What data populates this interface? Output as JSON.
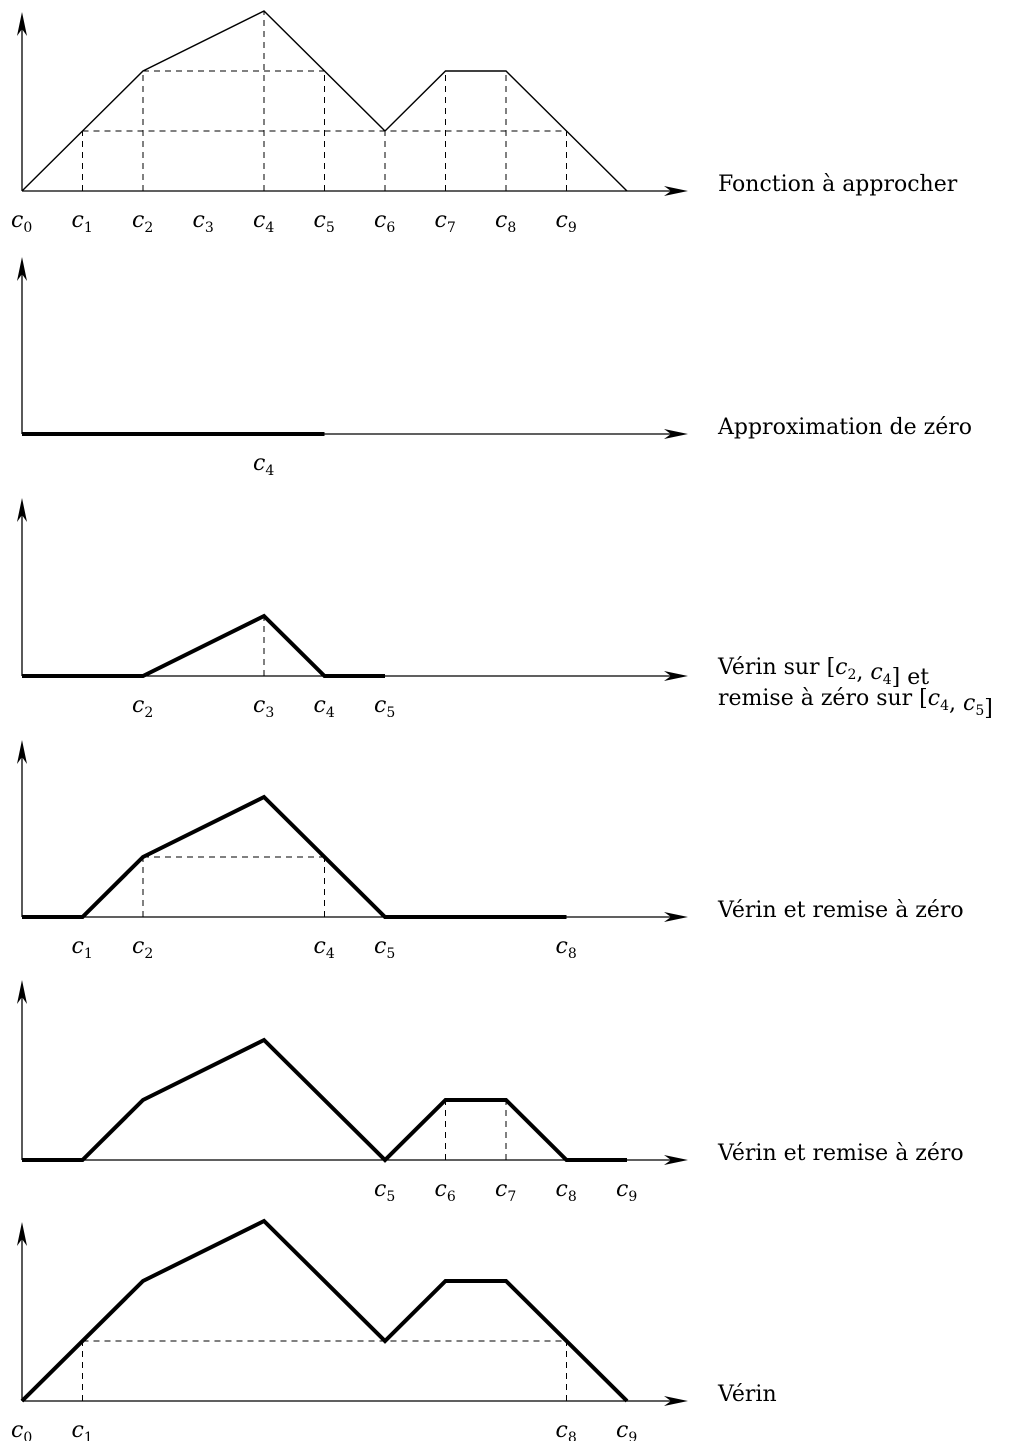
{
  "panels": [
    {
      "id": "target",
      "caption_lines": [
        [
          {
            "t": "Fonction à approcher"
          }
        ]
      ],
      "tick_labels": [
        {
          "k": 0,
          "text": "0"
        },
        {
          "k": 1,
          "text": "1"
        },
        {
          "k": 2,
          "text": "2"
        },
        {
          "k": 3,
          "text": "3"
        },
        {
          "k": 4,
          "text": "4"
        },
        {
          "k": 5,
          "text": "5"
        },
        {
          "k": 6,
          "text": "6"
        },
        {
          "k": 7,
          "text": "7"
        },
        {
          "k": 8,
          "text": "8"
        },
        {
          "k": 9,
          "text": "9"
        }
      ],
      "stroke": "thin",
      "curve": [
        [
          0,
          0
        ],
        [
          2,
          2
        ],
        [
          4,
          3
        ],
        [
          6,
          1
        ],
        [
          7,
          2
        ],
        [
          8,
          2
        ],
        [
          10,
          0
        ]
      ],
      "dashed": [
        [
          [
            1,
            0
          ],
          [
            1,
            1
          ]
        ],
        [
          [
            2,
            0
          ],
          [
            2,
            2
          ]
        ],
        [
          [
            4,
            0
          ],
          [
            4,
            3
          ]
        ],
        [
          [
            5,
            0
          ],
          [
            5,
            2
          ]
        ],
        [
          [
            6,
            0
          ],
          [
            6,
            1
          ]
        ],
        [
          [
            7,
            0
          ],
          [
            7,
            2
          ]
        ],
        [
          [
            8,
            0
          ],
          [
            8,
            2
          ]
        ],
        [
          [
            9,
            0
          ],
          [
            9,
            1
          ]
        ],
        [
          [
            2,
            2
          ],
          [
            5,
            2
          ]
        ],
        [
          [
            1,
            1
          ],
          [
            9,
            1
          ]
        ]
      ]
    },
    {
      "id": "zero",
      "caption_lines": [
        [
          {
            "t": "Approximation de zéro"
          }
        ]
      ],
      "tick_labels": [
        {
          "k": 5,
          "pos": 4,
          "text": "4"
        }
      ],
      "stroke": "thick",
      "curve": [
        [
          0,
          0
        ],
        [
          5,
          0
        ]
      ],
      "dashed": []
    },
    {
      "id": "jack-1",
      "caption_lines": [
        [
          {
            "t": "Vérin sur ["
          },
          {
            "c": "2"
          },
          {
            "t": ", "
          },
          {
            "c": "4"
          },
          {
            "t": "] et"
          }
        ],
        [
          {
            "t": "remise à zéro sur ["
          },
          {
            "c": "4"
          },
          {
            "t": ", "
          },
          {
            "c": "5"
          },
          {
            "t": "]"
          }
        ]
      ],
      "tick_labels": [
        {
          "k": 2,
          "text": "2"
        },
        {
          "k": 4,
          "text": "3"
        },
        {
          "k": 5,
          "text": "4"
        },
        {
          "k": 6,
          "text": "5"
        }
      ],
      "stroke": "thick",
      "curve": [
        [
          0,
          0
        ],
        [
          2,
          0
        ],
        [
          4,
          1
        ],
        [
          5,
          0
        ],
        [
          6,
          0
        ]
      ],
      "dashed": [
        [
          [
            4,
            0
          ],
          [
            4,
            1
          ]
        ]
      ]
    },
    {
      "id": "jack-2",
      "caption_lines": [
        [
          {
            "t": "Vérin et remise à zéro"
          }
        ]
      ],
      "tick_labels": [
        {
          "k": 1,
          "text": "1"
        },
        {
          "k": 2,
          "text": "2"
        },
        {
          "k": 5,
          "text": "4"
        },
        {
          "k": 6,
          "text": "5"
        },
        {
          "k": 9,
          "text": "8"
        }
      ],
      "stroke": "thick",
      "curve": [
        [
          0,
          0
        ],
        [
          1,
          0
        ],
        [
          2,
          1
        ],
        [
          4,
          2
        ],
        [
          6,
          0
        ],
        [
          9,
          0
        ]
      ],
      "dashed": [
        [
          [
            2,
            0
          ],
          [
            2,
            1
          ]
        ],
        [
          [
            5,
            0
          ],
          [
            5,
            1
          ]
        ],
        [
          [
            2,
            1
          ],
          [
            5,
            1
          ]
        ]
      ]
    },
    {
      "id": "jack-3",
      "caption_lines": [
        [
          {
            "t": "Vérin et remise à zéro"
          }
        ]
      ],
      "tick_labels": [
        {
          "k": 6,
          "text": "5"
        },
        {
          "k": 7,
          "text": "6"
        },
        {
          "k": 8,
          "text": "7"
        },
        {
          "k": 9,
          "text": "8"
        },
        {
          "k": 10,
          "text": "9"
        }
      ],
      "stroke": "thick",
      "curve": [
        [
          0,
          0
        ],
        [
          1,
          0
        ],
        [
          2,
          1
        ],
        [
          4,
          2
        ],
        [
          6,
          0
        ],
        [
          7,
          1
        ],
        [
          8,
          1
        ],
        [
          9,
          0
        ],
        [
          10,
          0
        ]
      ],
      "dashed": [
        [
          [
            7,
            0
          ],
          [
            7,
            1
          ]
        ],
        [
          [
            8,
            0
          ],
          [
            8,
            1
          ]
        ]
      ]
    },
    {
      "id": "jack-4",
      "caption_lines": [
        [
          {
            "t": "Vérin"
          }
        ]
      ],
      "tick_labels": [
        {
          "k": 0,
          "text": "0"
        },
        {
          "k": 1,
          "text": "1"
        },
        {
          "k": 9,
          "text": "8"
        },
        {
          "k": 10,
          "text": "9"
        }
      ],
      "stroke": "thick",
      "curve": [
        [
          0,
          0
        ],
        [
          2,
          2
        ],
        [
          4,
          3
        ],
        [
          6,
          1
        ],
        [
          7,
          2
        ],
        [
          8,
          2
        ],
        [
          10,
          0
        ]
      ],
      "dashed": [
        [
          [
            1,
            0
          ],
          [
            1,
            1
          ]
        ],
        [
          [
            9,
            0
          ],
          [
            9,
            1
          ]
        ],
        [
          [
            1,
            1
          ],
          [
            9,
            1
          ]
        ]
      ]
    }
  ]
}
